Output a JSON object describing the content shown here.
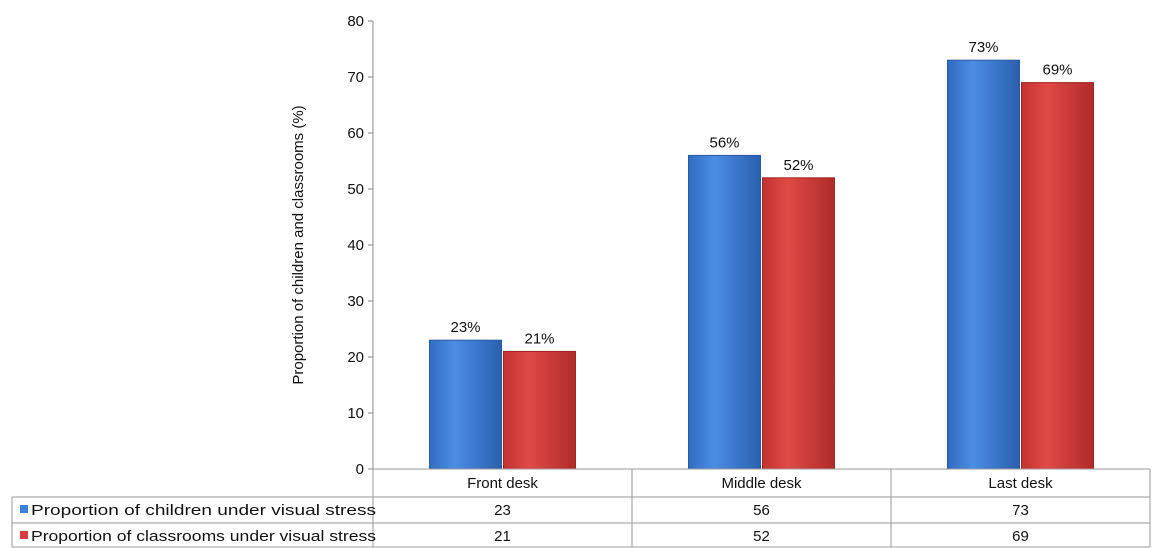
{
  "chart_data": {
    "type": "bar",
    "ylabel": "Proportion of children and classrooms (%)",
    "ylim": [
      0,
      80
    ],
    "yticks": [
      0,
      10,
      20,
      30,
      40,
      50,
      60,
      70,
      80
    ],
    "grid": false,
    "legend": "data-table-below",
    "categories": [
      "Front desk",
      "Middle desk",
      "Last desk"
    ],
    "series": [
      {
        "name": "Proportion of children under visual stress",
        "values": [
          23,
          56,
          73
        ],
        "labels": [
          "23%",
          "56%",
          "73%"
        ],
        "table_values": [
          "23",
          "56",
          "73"
        ],
        "color": "#3c7fd6"
      },
      {
        "name": "Proportion of classrooms under visual stress",
        "values": [
          21,
          52,
          69
        ],
        "labels": [
          "21%",
          "52%",
          "69%"
        ],
        "table_values": [
          "21",
          "52",
          "69"
        ],
        "color": "#d43e3b"
      }
    ]
  }
}
